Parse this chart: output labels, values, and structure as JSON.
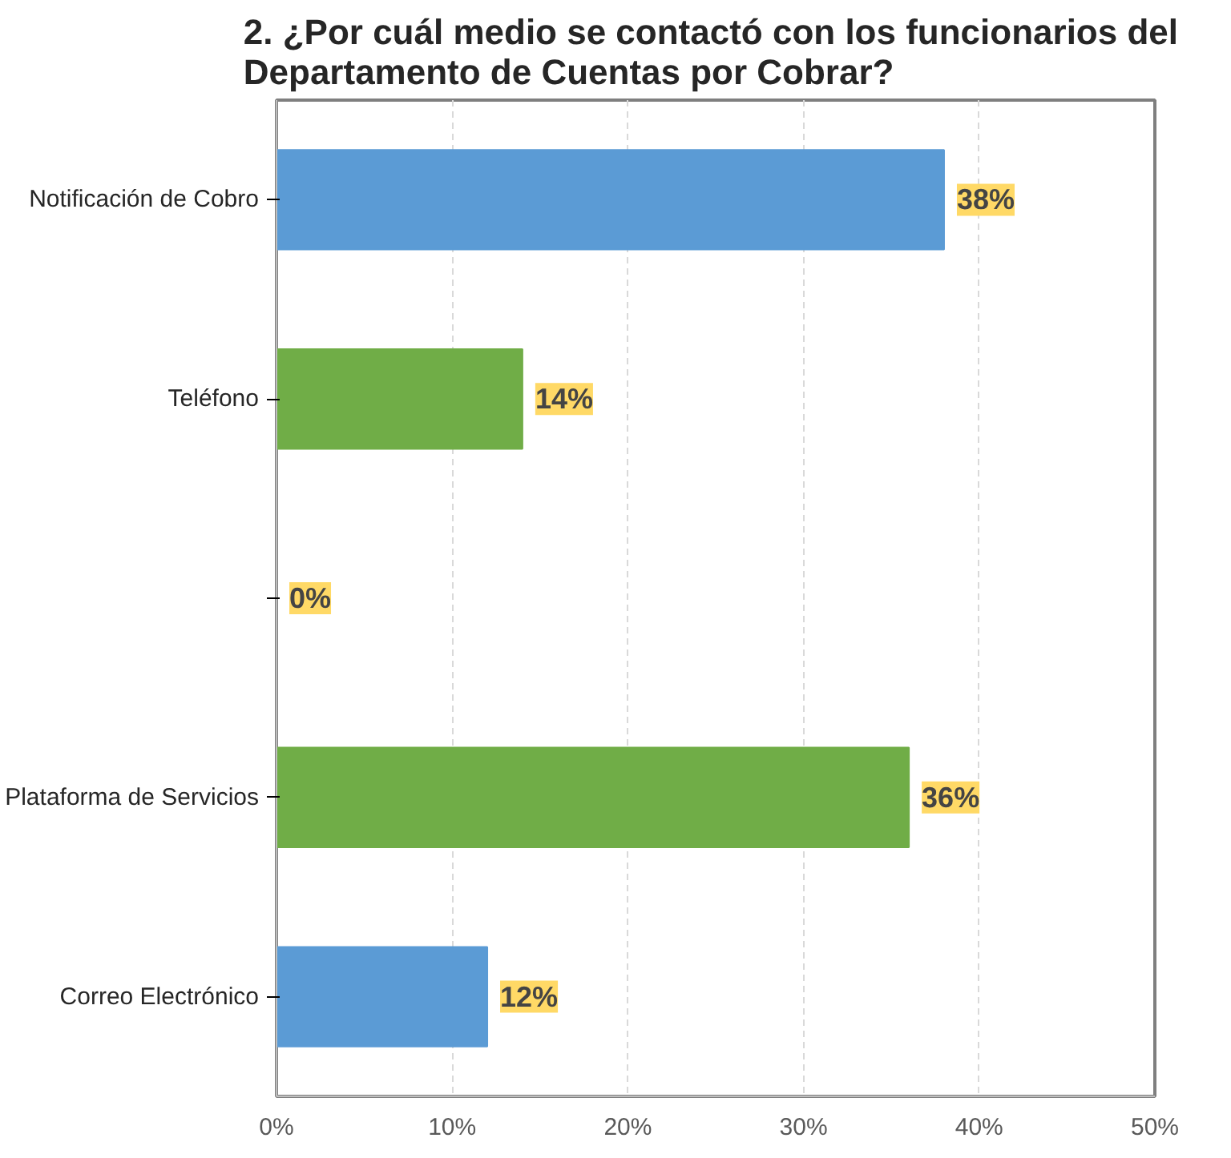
{
  "chart_data": {
    "type": "bar",
    "orientation": "horizontal",
    "title": "2. ¿Por cuál medio se contactó con los funcionarios  del Departamento de Cuentas por Cobrar?",
    "categories": [
      "Notificación de Cobro",
      "Teléfono",
      null,
      "Plataforma de Servicios",
      "Correo Electrónico"
    ],
    "values": [
      38,
      14,
      0,
      36,
      12
    ],
    "colors": [
      "#5b9bd5",
      "#70ad47",
      "#70ad47",
      "#70ad47",
      "#5b9bd5"
    ],
    "value_labels": [
      "38%",
      "14%",
      "0%",
      "36%",
      "12%"
    ],
    "xlim": [
      0,
      50
    ],
    "xticks": [
      {
        "value": 0,
        "label": "0%"
      },
      {
        "value": 10,
        "label": "10%"
      },
      {
        "value": 20,
        "label": "20%"
      },
      {
        "value": 30,
        "label": "30%"
      },
      {
        "value": 40,
        "label": "40%"
      },
      {
        "value": 50,
        "label": "50%"
      }
    ],
    "grid": "x"
  }
}
